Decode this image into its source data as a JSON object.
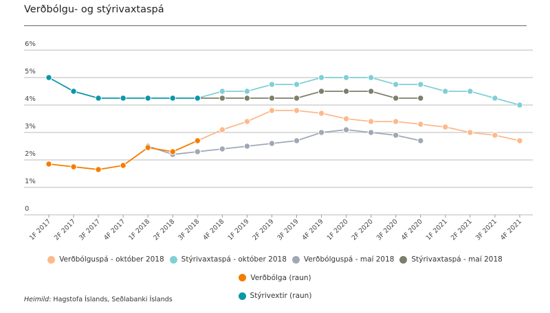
{
  "header": {
    "title": "Verðbólgu- og stýrivaxtaspá"
  },
  "source": {
    "label": "Heimild",
    "text": ": Hagstofa Íslands, Seðlabanki Íslands"
  },
  "chart_data": {
    "type": "line",
    "title": "Verðbólgu- og stýrivaxtaspá",
    "xlabel": "",
    "ylabel": "",
    "ylim": [
      0,
      6
    ],
    "y_ticks": [
      "0",
      "1%",
      "2%",
      "3%",
      "4%",
      "5%",
      "6%"
    ],
    "grid": true,
    "legend_position": "bottom",
    "categories": [
      "1F 2017",
      "2F 2017",
      "3F 2017",
      "4F 2017",
      "1F 2018",
      "2F 2018",
      "3F 2018",
      "4F 2018",
      "1F 2019",
      "2F 2019",
      "3F 2019",
      "4F 2019",
      "1F 2020",
      "2F 2020",
      "3F 2020",
      "4F 2020",
      "1F 2021",
      "2F 2021",
      "3F 2021",
      "4F 2021"
    ],
    "series": [
      {
        "name": "Verðbólguspá - október 2018",
        "color": "#fdb98a",
        "values": [
          null,
          null,
          null,
          null,
          null,
          null,
          2.7,
          3.1,
          3.4,
          3.8,
          3.8,
          3.7,
          3.5,
          3.4,
          3.4,
          3.3,
          3.2,
          3.0,
          2.9,
          2.7
        ]
      },
      {
        "name": "Stýrivaxtaspá - október 2018",
        "color": "#7fcfd6",
        "values": [
          null,
          null,
          null,
          null,
          null,
          null,
          4.25,
          4.5,
          4.5,
          4.75,
          4.75,
          5.0,
          5.0,
          5.0,
          4.75,
          4.75,
          4.5,
          4.5,
          4.25,
          4.0
        ]
      },
      {
        "name": "Verðbólguspá - maí 2018",
        "color": "#a0a8b6",
        "values": [
          null,
          null,
          null,
          null,
          2.5,
          2.2,
          2.3,
          2.4,
          2.5,
          2.6,
          2.7,
          3.0,
          3.1,
          3.0,
          2.9,
          2.7,
          null,
          null,
          null,
          null
        ]
      },
      {
        "name": "Stýrivaxtaspá - maí 2018",
        "color": "#7c7f6b",
        "values": [
          null,
          null,
          null,
          null,
          null,
          null,
          4.25,
          4.25,
          4.25,
          4.25,
          4.25,
          4.5,
          4.5,
          4.5,
          4.25,
          4.25,
          null,
          null,
          null,
          null
        ]
      },
      {
        "name": "Verðbólga (raun)",
        "color": "#f57c00",
        "values": [
          1.85,
          1.75,
          1.65,
          1.8,
          2.45,
          2.3,
          2.7,
          null,
          null,
          null,
          null,
          null,
          null,
          null,
          null,
          null,
          null,
          null,
          null,
          null
        ]
      },
      {
        "name": "Stýrivextir (raun)",
        "color": "#0a97a8",
        "values": [
          5.0,
          4.5,
          4.25,
          4.25,
          4.25,
          4.25,
          4.25,
          null,
          null,
          null,
          null,
          null,
          null,
          null,
          null,
          null,
          null,
          null,
          null,
          null
        ]
      }
    ]
  }
}
